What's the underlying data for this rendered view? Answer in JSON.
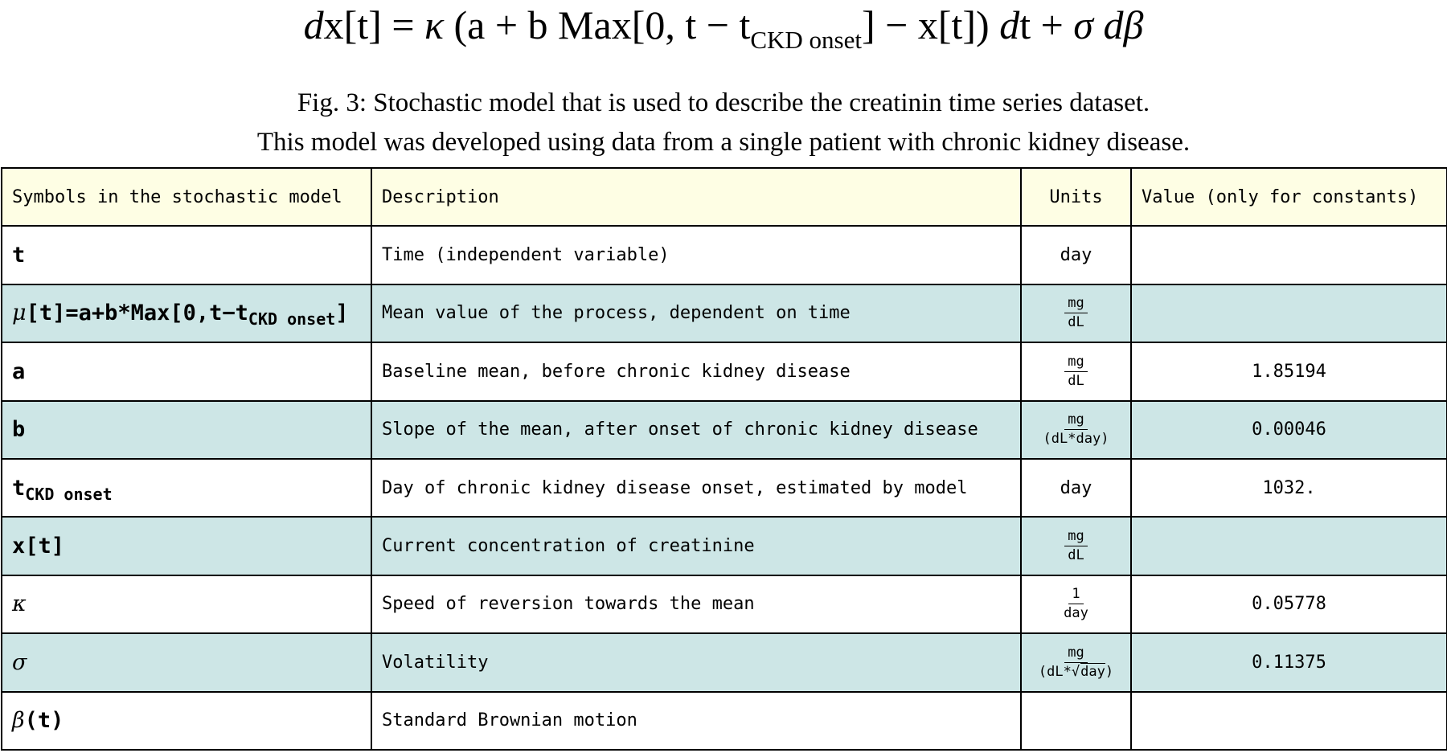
{
  "equation": {
    "d1": "d",
    "x_t": "x[t] = ",
    "kappa": "κ",
    "part1": " (a + b Max[0, t − t",
    "sub": "CKD onset",
    "part2": "] − x[t]) ",
    "d2": "d",
    "t": "t + ",
    "sigma": "σ",
    "sp": " ",
    "d3": "d",
    "beta": "β"
  },
  "caption": {
    "line1": "Fig. 3: Stochastic model that is used to describe the creatinin time series dataset.",
    "line2": "This model was developed using data from a single patient with chronic kidney disease."
  },
  "table": {
    "headers": {
      "symbol": "Symbols in the stochastic model",
      "description": "Description",
      "units": "Units",
      "value": "Value (only for constants)"
    },
    "rows": [
      {
        "symbol": "t",
        "description": "Time (independent variable)",
        "unit_text": "day",
        "value": ""
      },
      {
        "symbol_greek": "μ",
        "symbol_main": "[t]=a+b*Max[0,t−t",
        "symbol_sub": "CKD onset",
        "symbol_end": "]",
        "description": "Mean value of the process, dependent on time",
        "unit_num": "mg",
        "unit_den": "dL",
        "value": ""
      },
      {
        "symbol": "a",
        "description": "Baseline mean, before chronic kidney disease",
        "unit_num": "mg",
        "unit_den": "dL",
        "value": "1.85194"
      },
      {
        "symbol": "b",
        "description": "Slope of the mean, after onset of chronic kidney disease",
        "unit_num": "mg",
        "unit_den": "(dL*day)",
        "value": "0.00046"
      },
      {
        "symbol": "t",
        "symbol_sub": "CKD onset",
        "description": "Day of chronic kidney disease onset, estimated by model",
        "unit_text": "day",
        "value": "1032."
      },
      {
        "symbol": "x[t]",
        "description": "Current concentration of creatinine",
        "unit_num": "mg",
        "unit_den": "dL",
        "value": ""
      },
      {
        "symbol": "κ",
        "description": "Speed of reversion towards the mean",
        "unit_num": "1",
        "unit_den": "day",
        "value": "0.05778"
      },
      {
        "symbol": "σ",
        "description": "Volatility",
        "unit_num": "mg",
        "unit_den_pre": "(dL*",
        "unit_den_root": "√",
        "unit_den_rad": "day",
        "unit_den_post": ")",
        "value": "0.11375"
      },
      {
        "symbol_greek": "β",
        "symbol_main": "(t)",
        "description": "Standard Brownian motion",
        "unit_text": "",
        "value": ""
      }
    ]
  }
}
